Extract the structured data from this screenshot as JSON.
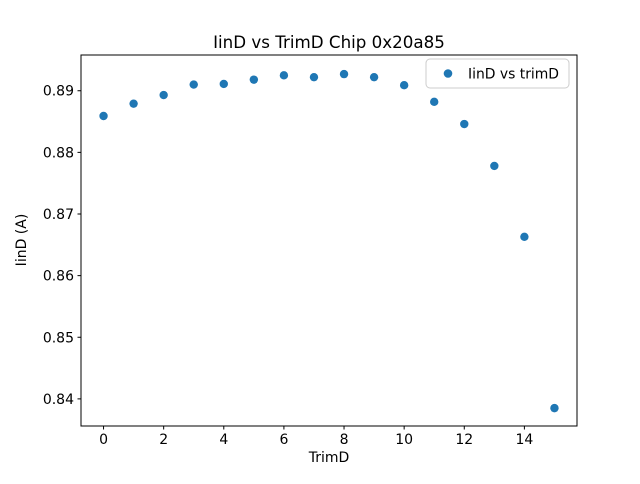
{
  "chart_data": {
    "type": "scatter",
    "title": "IinD vs TrimD Chip 0x20a85",
    "xlabel": "TrimD",
    "ylabel": "IinD (A)",
    "legend": {
      "label": "IinD vs trimD",
      "position": "upper right"
    },
    "series": [
      {
        "name": "IinD vs trimD",
        "x": [
          0,
          1,
          2,
          3,
          4,
          5,
          6,
          7,
          8,
          9,
          10,
          11,
          12,
          13,
          14,
          15
        ],
        "y": [
          0.8859,
          0.8879,
          0.8893,
          0.891,
          0.8911,
          0.8918,
          0.8925,
          0.8922,
          0.8927,
          0.8922,
          0.8909,
          0.8882,
          0.8846,
          0.8778,
          0.8663,
          0.8385
        ]
      }
    ],
    "xlim": [
      -0.75,
      15.75
    ],
    "ylim": [
      0.8356,
      0.8958
    ],
    "xticks": [
      0,
      2,
      4,
      6,
      8,
      10,
      12,
      14
    ],
    "yticks": [
      0.84,
      0.85,
      0.86,
      0.87,
      0.88,
      0.89
    ],
    "ytick_decimals": 2,
    "grid": false,
    "marker_color": "#1f77b4",
    "spine_color": "#000000",
    "legend_border_color": "#cccccc",
    "background_color": "#ffffff"
  }
}
